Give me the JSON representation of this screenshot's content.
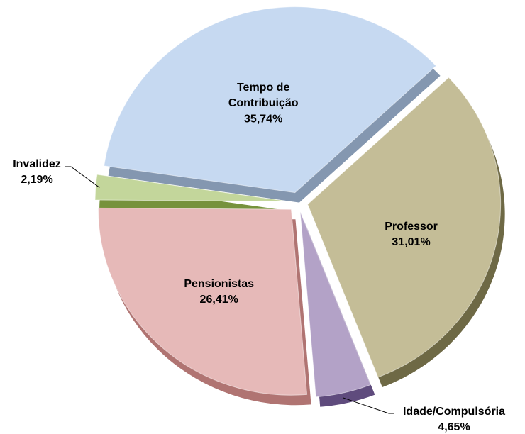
{
  "chart_data": {
    "type": "pie",
    "categories": [
      "Tempo de Contribuição",
      "Professor",
      "Idade/Compulsória",
      "Pensionistas",
      "Invalidez"
    ],
    "values": [
      35.74,
      31.01,
      4.65,
      26.41,
      2.19
    ],
    "value_labels": [
      "35,74%",
      "31,01%",
      "4,65%",
      "26,41%",
      "2,19%"
    ],
    "colors": [
      "#c6d9f1",
      "#c4bd97",
      "#b3a2c7",
      "#e6b9b8",
      "#c3d69b"
    ],
    "side_colors": [
      "#8497b0",
      "#6e6945",
      "#5f4b7d",
      "#b07472",
      "#76923c"
    ]
  }
}
